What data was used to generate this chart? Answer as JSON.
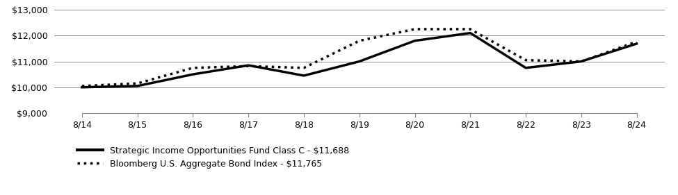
{
  "x_labels": [
    "8/14",
    "8/15",
    "8/16",
    "8/17",
    "8/18",
    "8/19",
    "8/20",
    "8/21",
    "8/22",
    "8/23",
    "8/24"
  ],
  "fund_values": [
    10000,
    10050,
    10500,
    10850,
    10450,
    11000,
    11800,
    12100,
    10750,
    11000,
    11688
  ],
  "index_values": [
    10050,
    10150,
    10750,
    10820,
    10750,
    11800,
    12250,
    12250,
    11050,
    11000,
    11765
  ],
  "ylim": [
    9000,
    13000
  ],
  "yticks": [
    9000,
    10000,
    11000,
    12000,
    13000
  ],
  "fund_label": "Strategic Income Opportunities Fund Class C - $11,688",
  "index_label": "Bloomberg U.S. Aggregate Bond Index - $11,765",
  "fund_color": "#000000",
  "index_color": "#000000",
  "background_color": "#ffffff",
  "grid_color": "#888888"
}
